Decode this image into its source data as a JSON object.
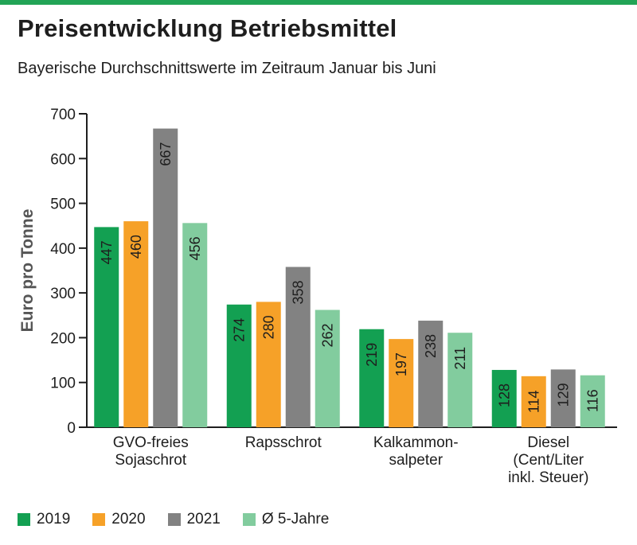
{
  "colors": {
    "accent": "#22a456",
    "c2019": "#13a052",
    "c2020": "#f6a128",
    "c2021": "#828282",
    "c5j": "#82cc9e",
    "axis": "#1e1e1e"
  },
  "title": "Preisentwicklung Betriebsmittel",
  "subtitle": "Bayerische Durchschnittswerte im Zeitraum Januar bis Juni",
  "chart_data": {
    "type": "bar",
    "ylabel": "Euro pro Tonne",
    "xlabel": "",
    "ylim": [
      0,
      700
    ],
    "yticks": [
      0,
      100,
      200,
      300,
      400,
      500,
      600,
      700
    ],
    "grid": false,
    "legend_position": "bottom",
    "categories": [
      [
        "GVO-freies",
        "Sojaschrot"
      ],
      [
        "Rapsschrot"
      ],
      [
        "Kalkammon-",
        "salpeter"
      ],
      [
        "Diesel",
        "(Cent/Liter",
        "inkl. Steuer)"
      ]
    ],
    "series": [
      {
        "name": "2019",
        "color": "#13a052",
        "values": [
          447,
          274,
          219,
          128
        ]
      },
      {
        "name": "2020",
        "color": "#f6a128",
        "values": [
          460,
          280,
          197,
          114
        ]
      },
      {
        "name": "2021",
        "color": "#828282",
        "values": [
          667,
          358,
          238,
          129
        ]
      },
      {
        "name": "Ø 5-Jahre",
        "color": "#82cc9e",
        "values": [
          456,
          262,
          211,
          116
        ]
      }
    ]
  }
}
